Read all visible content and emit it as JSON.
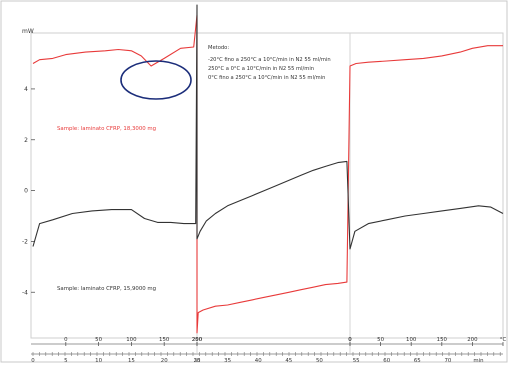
{
  "chart_data": {
    "type": "line",
    "y_unit": "mW",
    "y_ticks": [
      4,
      2,
      0,
      -2,
      -4
    ],
    "ylim": [
      -5.8,
      6.2
    ],
    "x_unit_temp": "°C",
    "x_unit_time": "min",
    "segments": [
      {
        "xlim": [
          0,
          250
        ],
        "temp_tick_labels": [
          "0",
          "50",
          "100",
          "150",
          "200"
        ],
        "temp_tick_values": [
          50,
          100,
          150,
          200,
          250
        ],
        "time_tick_labels": [
          "0",
          "5",
          "10",
          "15",
          "20",
          "25"
        ],
        "time_tick_values": [
          0,
          50,
          100,
          150,
          200,
          250
        ]
      },
      {
        "xlim": [
          250,
          0
        ],
        "temp_tick_labels": [
          "250",
          "0"
        ],
        "temp_tick_values": [
          250,
          0
        ],
        "time_tick_labels": [
          "30",
          "35",
          "40",
          "45",
          "50"
        ],
        "time_tick_values": [
          0,
          50,
          100,
          150,
          200
        ]
      },
      {
        "xlim": [
          0,
          250
        ],
        "temp_tick_labels": [
          "0",
          "50",
          "100",
          "150",
          "200",
          "°C"
        ],
        "temp_tick_values": [
          0,
          50,
          100,
          150,
          200,
          250
        ],
        "time_tick_labels": [
          "55",
          "60",
          "65",
          "70",
          "min"
        ],
        "time_tick_values": [
          10,
          60,
          110,
          160,
          210
        ]
      }
    ],
    "annotation": {
      "heading": "Metodo:",
      "lines": [
        "-20°C fino a 250°C a 10°C/min in N2 55 ml/min",
        "250°C a 0°C a 10°C/min in N2 55 ml/min",
        "0°C fino a 250°C a 10°C/min in N2 55 ml/min"
      ]
    },
    "series": [
      {
        "name": "Sample: laminato CFRP, 18,3000 mg",
        "color": "#e83a3a",
        "segments": [
          {
            "x": [
              0,
              10,
              30,
              50,
              80,
              110,
              130,
              150,
              165,
              180,
              200,
              225,
              245,
              250
            ],
            "y": [
              5.0,
              5.15,
              5.2,
              5.35,
              5.45,
              5.5,
              5.55,
              5.5,
              5.3,
              4.9,
              5.2,
              5.6,
              5.65,
              6.9
            ]
          },
          {
            "x": [
              250,
              248,
              240,
              220,
              200,
              180,
              160,
              140,
              120,
              100,
              80,
              60,
              40,
              20,
              5,
              0
            ],
            "y": [
              -5.6,
              -4.8,
              -4.7,
              -4.55,
              -4.5,
              -4.4,
              -4.3,
              -4.2,
              -4.1,
              -4.0,
              -3.9,
              -3.8,
              -3.7,
              -3.65,
              -3.6,
              4.9
            ]
          },
          {
            "x": [
              0,
              10,
              30,
              60,
              90,
              120,
              150,
              180,
              200,
              225,
              250
            ],
            "y": [
              4.9,
              5.0,
              5.05,
              5.1,
              5.15,
              5.2,
              5.3,
              5.45,
              5.6,
              5.7,
              5.7
            ]
          }
        ]
      },
      {
        "name": "Sample: laminato CFRP, 15,9000 mg",
        "color": "#333333",
        "segments": [
          {
            "x": [
              0,
              10,
              30,
              60,
              90,
              120,
              150,
              170,
              190,
              210,
              230,
              248,
              250
            ],
            "y": [
              -2.2,
              -1.3,
              -1.15,
              -0.9,
              -0.8,
              -0.75,
              -0.75,
              -1.1,
              -1.25,
              -1.25,
              -1.3,
              -1.3,
              7.3
            ]
          },
          {
            "x": [
              250,
              245,
              235,
              220,
              200,
              180,
              160,
              140,
              120,
              100,
              80,
              60,
              40,
              20,
              5,
              0
            ],
            "y": [
              -1.9,
              -1.6,
              -1.2,
              -0.9,
              -0.6,
              -0.4,
              -0.2,
              0.0,
              0.2,
              0.4,
              0.6,
              0.8,
              0.95,
              1.1,
              1.15,
              -2.3
            ]
          },
          {
            "x": [
              0,
              8,
              30,
              60,
              90,
              120,
              150,
              180,
              210,
              230,
              250
            ],
            "y": [
              -2.3,
              -1.6,
              -1.3,
              -1.15,
              -1.0,
              -0.9,
              -0.8,
              -0.7,
              -0.6,
              -0.65,
              -0.9
            ]
          }
        ]
      }
    ]
  }
}
